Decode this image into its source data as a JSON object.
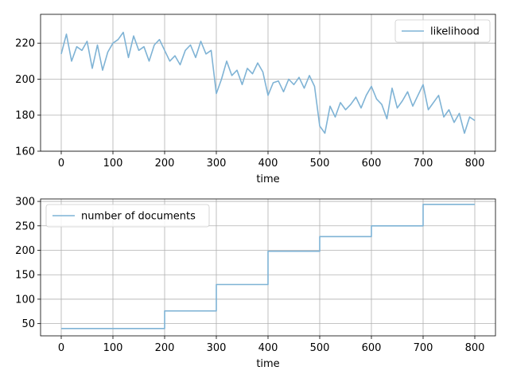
{
  "chart_data": [
    {
      "type": "line",
      "xlabel": "time",
      "ylabel": "",
      "xlim": [
        -40,
        840
      ],
      "ylim": [
        160,
        236
      ],
      "xticks": [
        0,
        100,
        200,
        300,
        400,
        500,
        600,
        700,
        800
      ],
      "yticks": [
        160,
        180,
        200,
        220
      ],
      "grid": true,
      "legend_position": "top-right",
      "series": [
        {
          "name": "likelihood",
          "color": "#7fb3d5",
          "x": [
            0,
            10,
            20,
            30,
            40,
            50,
            60,
            70,
            80,
            90,
            100,
            110,
            120,
            130,
            140,
            150,
            160,
            170,
            180,
            190,
            200,
            210,
            220,
            230,
            240,
            250,
            260,
            270,
            280,
            290,
            300,
            310,
            320,
            330,
            340,
            350,
            360,
            370,
            380,
            390,
            400,
            410,
            420,
            430,
            440,
            450,
            460,
            470,
            480,
            490,
            500,
            510,
            520,
            530,
            540,
            550,
            560,
            570,
            580,
            590,
            600,
            610,
            620,
            630,
            640,
            650,
            660,
            670,
            680,
            690,
            700,
            710,
            720,
            730,
            740,
            750,
            760,
            770,
            780,
            790,
            800
          ],
          "values": [
            214,
            225,
            210,
            218,
            216,
            221,
            206,
            219,
            205,
            215,
            220,
            222,
            226,
            212,
            224,
            216,
            218,
            210,
            219,
            222,
            216,
            210,
            213,
            208,
            216,
            219,
            212,
            221,
            214,
            216,
            192,
            200,
            210,
            202,
            205,
            197,
            206,
            203,
            209,
            204,
            191,
            198,
            199,
            193,
            200,
            197,
            201,
            195,
            202,
            196,
            174,
            170,
            185,
            179,
            187,
            183,
            186,
            190,
            184,
            191,
            196,
            189,
            186,
            178,
            195,
            184,
            188,
            193,
            185,
            191,
            197,
            183,
            187,
            191,
            179,
            183,
            176,
            181,
            170,
            179,
            177
          ]
        }
      ]
    },
    {
      "type": "line",
      "xlabel": "time",
      "ylabel": "",
      "xlim": [
        -40,
        840
      ],
      "ylim": [
        25,
        305
      ],
      "xticks": [
        0,
        100,
        200,
        300,
        400,
        500,
        600,
        700,
        800
      ],
      "yticks": [
        50,
        100,
        150,
        200,
        250,
        300
      ],
      "grid": true,
      "legend_position": "top-left",
      "series": [
        {
          "name": "number of documents",
          "color": "#7fb3d5",
          "x": [
            0,
            200,
            200,
            300,
            300,
            400,
            400,
            500,
            500,
            600,
            600,
            700,
            700,
            800
          ],
          "values": [
            40,
            40,
            76,
            76,
            130,
            130,
            198,
            198,
            228,
            228,
            250,
            250,
            294,
            294
          ]
        }
      ]
    }
  ]
}
